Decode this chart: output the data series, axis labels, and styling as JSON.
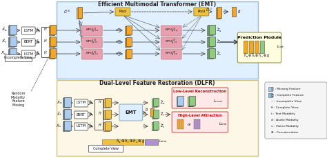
{
  "title_emt": "Efficient Multimodal Transformer (EMT)",
  "title_dlfr": "Dual-Level Feature Restoration (DLFR)",
  "title_pred": "Prediction Module",
  "bg_emt": "#dceeff",
  "bg_dlfr": "#fdf6e3",
  "bg_low": "#ffe8e8",
  "bg_high": "#ffe8e8",
  "legend_bg": "#f5f5f5",
  "orange": "#f5a623",
  "dark_orange": "#e07b00",
  "gold": "#f0c040",
  "green": "#5aaa50",
  "light_green": "#90cc80",
  "blue_incomplete": "#aaccee",
  "blue_complete": "#88bbdd",
  "purple": "#b090d0",
  "pink_mpu": "#e8a0b0",
  "gray_box": "#cccccc",
  "text_color": "#222222",
  "legend_items": [
    [
      "▯: Missing Feature",
      "#d0e8f0"
    ],
    [
      "▯: Complete Feature",
      "#aaddee"
    ],
    [
      "~: Incomplete View",
      "none"
    ],
    [
      "θ: Complete View",
      "none"
    ],
    [
      "t: Text Modality",
      "none"
    ],
    [
      "d: Audio Modality",
      "none"
    ],
    [
      "v: Vision Modality",
      "none"
    ],
    [
      "⊕: Concatenation",
      "none"
    ]
  ]
}
